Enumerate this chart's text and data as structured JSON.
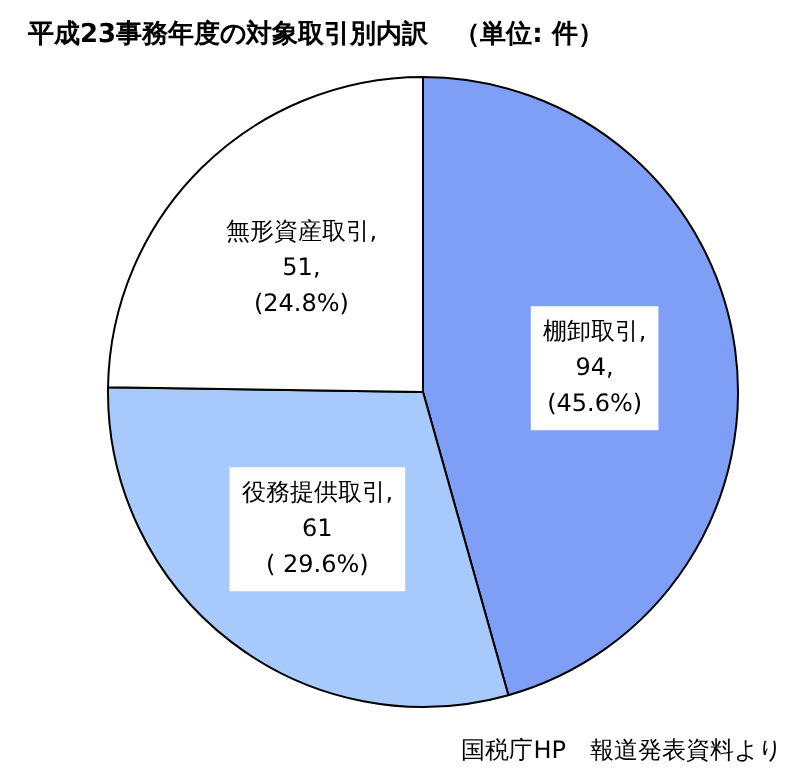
{
  "chart_data": {
    "type": "pie",
    "title": "平成23事務年度の対象取引別内訳　（単位: 件）",
    "categories": [
      "棚卸取引",
      "役務提供取引",
      "無形資産取引"
    ],
    "values": [
      94,
      61,
      51
    ],
    "colors": [
      "#7f9ff7",
      "#a8c9fb",
      "#ffffff"
    ],
    "value_labels": [
      ",\n94,\n(45.6%)",
      ",\n61\n( 29.6%)",
      ",\n51,\n(24.8%)"
    ],
    "legend": false,
    "annotations": [
      "国税庁HP　報道発表資料より"
    ]
  }
}
